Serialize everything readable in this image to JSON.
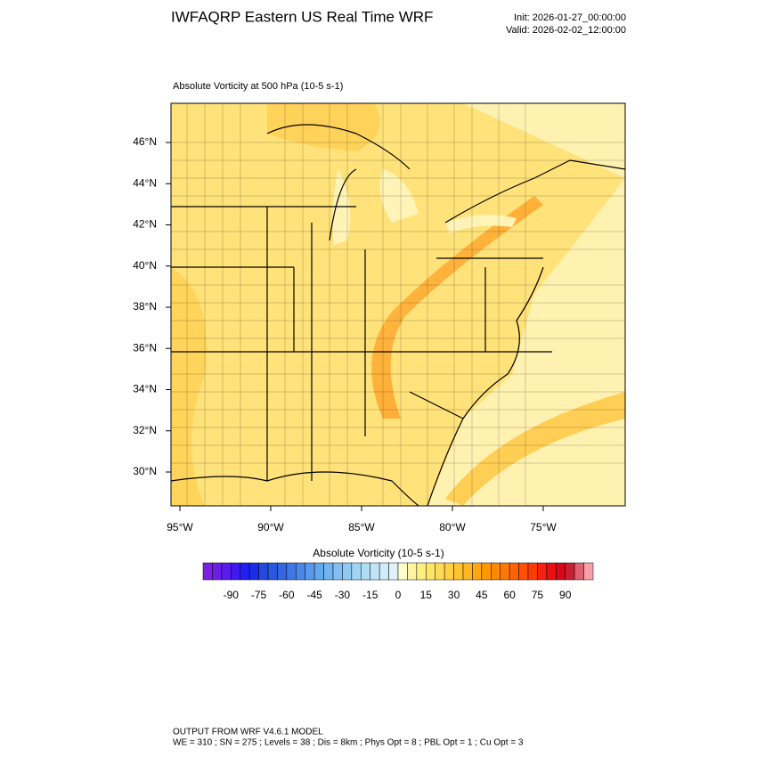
{
  "header": {
    "title": "IWFAQRP Eastern US Real Time WRF",
    "init": "Init: 2026-01-27_00:00:00",
    "valid": "Valid: 2026-02-02_12:00:00"
  },
  "map": {
    "subtitle": "Absolute Vorticity at 500 hPa   (10-5 s-1)",
    "lat_labels": [
      "46°N",
      "44°N",
      "42°N",
      "40°N",
      "38°N",
      "36°N",
      "34°N",
      "32°N",
      "30°N"
    ],
    "lon_labels": [
      "95°W",
      "90°W",
      "85°W",
      "80°W",
      "75°W"
    ]
  },
  "colorbar": {
    "title": "Absolute Vorticity  (10-5 s-1)",
    "labels": [
      -90,
      -75,
      -60,
      -45,
      -30,
      -15,
      0,
      15,
      30,
      45,
      60,
      75,
      90
    ],
    "colors": [
      "#7b1fe0",
      "#6a1ee6",
      "#5a1bec",
      "#3f1af0",
      "#2020f5",
      "#1a2ee8",
      "#2448e0",
      "#2a58dc",
      "#3366e0",
      "#3f78e4",
      "#4a88e8",
      "#5598ec",
      "#62a8ee",
      "#70b4f0",
      "#80c0f2",
      "#90caf2",
      "#a0d4f4",
      "#b0dcf4",
      "#c0e4f6",
      "#d0ecf8",
      "#e0f2fa",
      "#fffcd0",
      "#fff5a0",
      "#ffee80",
      "#ffe566",
      "#ffda55",
      "#ffd040",
      "#ffc530",
      "#ffb820",
      "#ffa810",
      "#ff9800",
      "#ff8800",
      "#ff7800",
      "#ff6400",
      "#ff5000",
      "#ff3c00",
      "#f52010",
      "#e81010",
      "#d80818",
      "#c82030",
      "#e06070",
      "#f8a0a8"
    ]
  },
  "footer": {
    "line1": "OUTPUT FROM WRF V4.6.1 MODEL",
    "line2": "WE = 310 ; SN = 275 ; Levels = 38 ; Dis = 8km ; Phys Opt = 8 ; PBL Opt = 1 ; Cu Opt = 3"
  }
}
